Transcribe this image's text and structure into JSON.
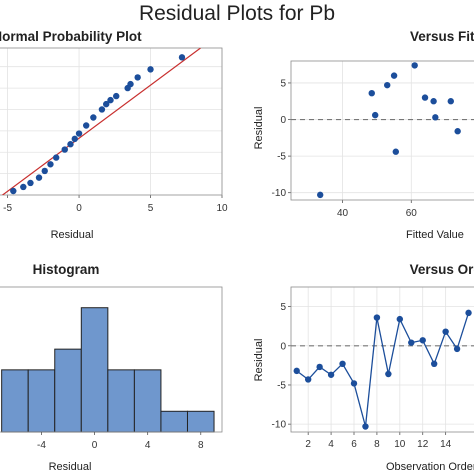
{
  "title": "Residual Plots for Pb",
  "colors": {
    "point": "#1c4e9b",
    "fit_line": "#c8302f",
    "bar_fill": "#6f97cd",
    "reference": "#777777"
  },
  "chart_data": [
    {
      "id": "probability",
      "type": "scatter",
      "title": "Normal Probability Plot",
      "xlabel": "Residual",
      "ylabel": "",
      "xlim": [
        -5.6,
        10
      ],
      "xticks": [
        "-5",
        "0",
        "5",
        "10"
      ],
      "grid": true,
      "points": [
        [
          -4.6,
          1.5
        ],
        [
          -3.9,
          3
        ],
        [
          -3.4,
          4.5
        ],
        [
          -2.8,
          6.5
        ],
        [
          -2.4,
          9
        ],
        [
          -2.0,
          11.5
        ],
        [
          -1.6,
          14
        ],
        [
          -1.0,
          17
        ],
        [
          -0.6,
          19
        ],
        [
          -0.3,
          21
        ],
        [
          0.0,
          23
        ],
        [
          0.5,
          26
        ],
        [
          1.0,
          29
        ],
        [
          1.6,
          32
        ],
        [
          1.9,
          34
        ],
        [
          2.2,
          35.5
        ],
        [
          2.6,
          37
        ],
        [
          3.4,
          40
        ],
        [
          3.6,
          41.5
        ],
        [
          4.1,
          44
        ],
        [
          5.0,
          47
        ],
        [
          7.2,
          51.5
        ]
      ],
      "fit_line": [
        [
          -5.6,
          -1
        ],
        [
          8.5,
          55
        ]
      ]
    },
    {
      "id": "versus_fits",
      "type": "scatter",
      "title": "Versus Fits",
      "xlabel": "Fitted Value",
      "ylabel": "Residual",
      "xlim": [
        25,
        80
      ],
      "ylim": [
        -11,
        8
      ],
      "xticks": [
        "40",
        "60"
      ],
      "yticks": [
        "5",
        "0",
        "-5",
        "-10"
      ],
      "reference_y": 0,
      "grid": true,
      "points": [
        [
          33.5,
          -10.3
        ],
        [
          48.5,
          3.6
        ],
        [
          49.5,
          0.6
        ],
        [
          53,
          4.7
        ],
        [
          55,
          6.0
        ],
        [
          55.5,
          -4.4
        ],
        [
          61,
          7.4
        ],
        [
          64,
          3.0
        ],
        [
          66.5,
          2.5
        ],
        [
          67,
          0.3
        ],
        [
          71.5,
          2.5
        ],
        [
          73.5,
          -1.6
        ]
      ]
    },
    {
      "id": "histogram",
      "type": "bar",
      "title": "Histogram",
      "xlabel": "Residual",
      "ylabel": "",
      "xlim": [
        -7.2,
        9.6
      ],
      "xticks": [
        "-4",
        "0",
        "4",
        "8"
      ],
      "bins": [
        {
          "start": -7,
          "end": -5,
          "count": 3
        },
        {
          "start": -5,
          "end": -3,
          "count": 3
        },
        {
          "start": -3,
          "end": -1,
          "count": 4
        },
        {
          "start": -1,
          "end": 1,
          "count": 6
        },
        {
          "start": 1,
          "end": 3,
          "count": 3
        },
        {
          "start": 3,
          "end": 5,
          "count": 3
        },
        {
          "start": 5,
          "end": 7,
          "count": 1
        },
        {
          "start": 7,
          "end": 9,
          "count": 1
        }
      ],
      "ylim": [
        0,
        7
      ]
    },
    {
      "id": "versus_order",
      "type": "line",
      "title": "Versus Order",
      "xlabel": "Observation Order",
      "ylabel": "Residual",
      "xlim": [
        0.5,
        17
      ],
      "ylim": [
        -11,
        7.5
      ],
      "xticks": [
        "2",
        "4",
        "6",
        "8",
        "10",
        "12",
        "14"
      ],
      "yticks": [
        "5",
        "0",
        "-5",
        "-10"
      ],
      "reference_y": 0,
      "grid": true,
      "x": [
        1,
        2,
        3,
        4,
        5,
        6,
        7,
        8,
        9,
        10,
        11,
        12,
        13,
        14,
        15,
        16
      ],
      "y": [
        -3.2,
        -4.3,
        -2.7,
        -3.7,
        -2.3,
        -4.8,
        -10.3,
        3.6,
        -3.6,
        3.4,
        0.4,
        0.7,
        -2.3,
        1.8,
        -0.4,
        4.2
      ]
    }
  ]
}
